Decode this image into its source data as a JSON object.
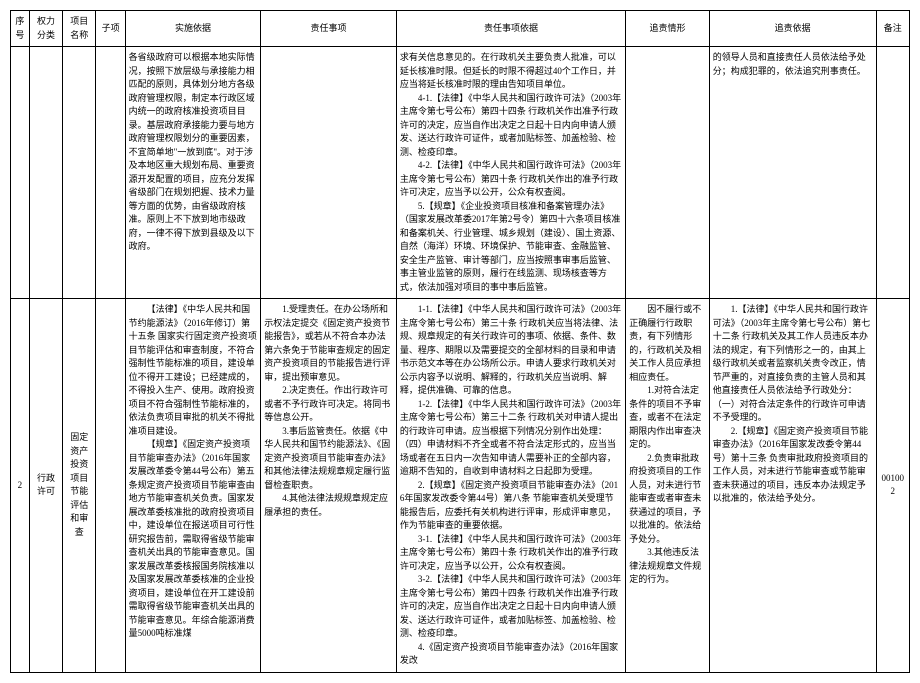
{
  "headers": {
    "seq": "序号",
    "power": "权力分类",
    "proj": "项目名称",
    "sub": "子项",
    "basis": "实施依据",
    "duty": "责任事项",
    "dutybasis": "责任事项依据",
    "pursue": "追责情形",
    "pursuebasis": "追责依据",
    "note": "备注"
  },
  "row1": {
    "basis": "各省级政府可以根据本地实际情况，按照下放层级与承接能力相匹配的原则，具体划分地方各级政府管理权限，制定本行政区域内统一的政府核准投资项目目录。基层政府承接能力要与地方政府管理权限划分的重要因素，不宜简单地\"一放到底\"。对于涉及本地区重大规划布局、重要资源开发配置的项目，应充分发挥省级部门在规划把握、技术力量等方面的优势，由省级政府核准。原则上不下放到地市级政府，一律不得下放到县级及以下政府。",
    "dutybasis_p1": "求有关信息意见的。在行政机关主要负责人批准，可以延长核准时限。但延长的时限不得超过40个工作日，并应当将延长核准时限的理由告知项目单位。",
    "dutybasis_p2": "4-1.【法律】《中华人民共和国行政许可法》（2003年主席令第七号公布）第四十四条 行政机关作出准予行政许可的决定，应当自作出决定之日起十日内向申请人颁发、送达行政许可证件，或者加贴标签、加盖检验、检测、检疫印章。",
    "dutybasis_p3": "4-2.【法律】《中华人民共和国行政许可法》（2003年主席令第七号公布）第四十条 行政机关作出的准予行政许可决定，应当予以公开，公众有权查阅。",
    "dutybasis_p4": "5.【规章】《企业投资项目核准和备案管理办法》（国家发展改革委2017年第2号令）第四十六条项目核准和备案机关、行业管理、城乡规划（建设）、国土资源、自然（海洋）环境、环境保护、节能审查、金融监管、安全生产监管、审计等部门，应当按照事审事后监管、事主管业监管的原则，履行在线监测、现场核查等方式，依法加强对项目的事中事后监管。",
    "pursuebasis": "的领导人员和直接责任人员依法给予处分；构成犯罪的，依法追究刑事责任。"
  },
  "row2": {
    "seq": "2",
    "power": "行政许可",
    "proj": "固定资产投资项目节能评估和审查",
    "basis_p1": "【法律】《中华人民共和国节约能源法》（2016年修订）第十五条 国家实行固定资产投资项目节能评估和审查制度，不符合强制性节能标准的项目，建设单位不得开工建设；已经建成的，不得投入生产、使用。政府投资项目不符合强制性节能标准的，依法负责项目审批的机关不得批准项目建设。",
    "basis_p2": "【规章】《固定资产投资项目节能审查办法》（2016年国家发展改革委令第44号公布）第五条规定资产投资项目节能审查由地方节能审查机关负责。国家发展改革委核准批的政府投资项目中，建设单位在报送项目可行性研究报告前，需取得省级节能审查机关出具的节能审查意见。国家发展改革委核报国务院核准以及国家发展改革委核准的企业投资项目，建设单位在开工建设前需取得省级节能审查机关出具的节能审查意见。年综合能源消费量5000吨标准煤",
    "duty_p1": "1.受理责任。在办公场所和示权法定提交《固定资产投资节能报告》，或若从不符合本办法第六条免于节能审查规定的固定资产投资项目的节能报告进行评审，提出预审意见。",
    "duty_p2": "2.决定责任。作出行政许可或者不予行政许可决定。将同书等信息公开。",
    "duty_p3": "3.事后监管责任。依据《中华人民共和国节约能源法》、《固定资产投资项目节能审查办法》和其他法律法规规章规定履行监督检查职责。",
    "duty_p4": "4.其他法律法规规章规定应履承担的责任。",
    "dutybasis_p1": "1-1.【法律】《中华人民共和国行政许可法》（2003年主席令第七号公布）第三十条 行政机关应当将法律、法规、规章规定的有关行政许可的事项、依据、条件、数量、程序、期限以及需要提交的全部材料的目录和申请书示范文本等在办公场所公示。申请人要求行政机关对公示内容予以说明、解释的，行政机关应当说明、解释，提供准确、可靠的信息。",
    "dutybasis_p2": "1-2.【法律】《中华人民共和国行政许可法》（2003年主席令第七号公布）第三十二条 行政机关对申请人提出的行政许可申请。应当根据下列情况分别作出处理：（四）申请材料不齐全或者不符合法定形式的，应当当场或者在五日内一次告知申请人需要补正的全部内容，逾期不告知的，自收到申请材料之日起即为受理。",
    "dutybasis_p3": "2.【规章】《固定资产投资项目节能审查办法》（2016年国家发改委令第44号）第八条 节能审查机关受理节能报告后，应委托有关机构进行评审，形成评审意见，作为节能审查的重要依据。",
    "dutybasis_p4": "3-1.【法律】《中华人民共和国行政许可法》（2003年主席令第七号公布）第四十条 行政机关作出的准予行政许可决定，应当予以公开，公众有权查阅。",
    "dutybasis_p5": "3-2.【法律】《中华人民共和国行政许可法》（2003年主席令第七号公布）第四十四条 行政机关作出准予行政许可的决定，应当自作出决定之日起十日内向申请人颁发、送达行政许可证件，或者加贴标签、加盖检验、检测、检疫印章。",
    "dutybasis_p6": "4.《固定资产投资项目节能审查办法》（2016年国家发改",
    "pursue_p1": "因不履行或不正确履行行政职责，有下列情形的，行政机关及相关工作人员应承担相应责任。",
    "pursue_p2": "1.对符合法定条件的项目不予审查，或者不在法定期限内作出审查决定的。",
    "pursue_p3": "2.负责审批政府投资项目的工作人员，对未进行节能审查或者审查未获通过的项目，予以批准的。依法给予处分。",
    "pursue_p4": "3.其他违反法律法规规章文件规定的行为。",
    "pursuebasis_p1": "1.【法律】《中华人民共和国行政许可法》（2003年主席令第七号公布）第七十二条 行政机关及其工作人员违反本办法的规定，有下列情形之一的，由其上级行政机关或者监察机关责令改正，情节严重的，对直接负责的主管人员和其他直接责任人员依法给予行政处分：（一）对符合法定条件的行政许可申请不予受理的。",
    "pursuebasis_p2": "2.【规章】《固定资产投资项目节能审查办法》（2016年国家发改委令第44号）第十三条 负责审批政府投资项目的工作人员，对未进行节能审查或节能审查未获通过的项目，违反本办法规定予以批准的，依法给予处分。",
    "note": "001002"
  }
}
